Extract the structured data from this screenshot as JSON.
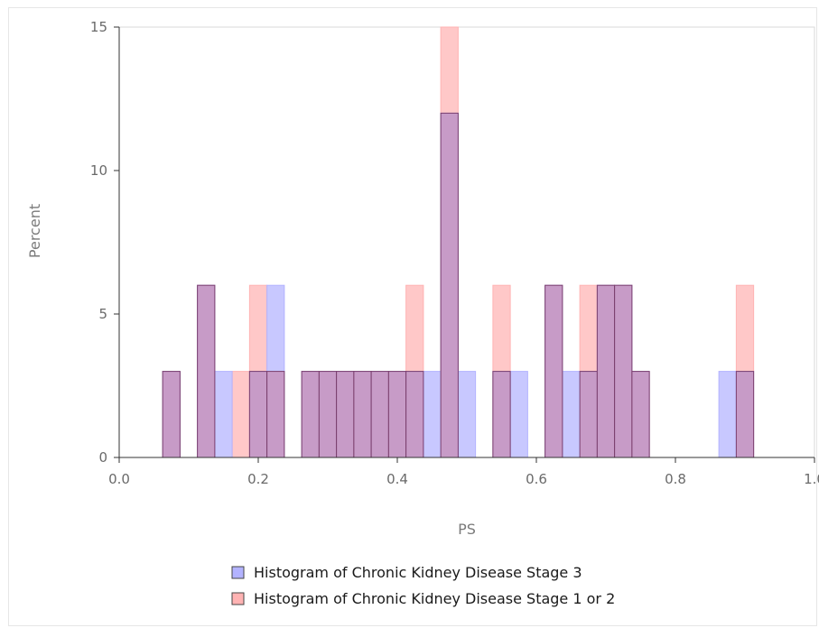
{
  "chart_data": {
    "type": "bar",
    "subtype": "overlaid-histogram",
    "xlabel": "PS",
    "ylabel": "Percent",
    "xlim": [
      0.0,
      1.0
    ],
    "ylim": [
      0,
      15
    ],
    "x_ticks": [
      "0.0",
      "0.2",
      "0.4",
      "0.6",
      "0.8",
      "1.0"
    ],
    "x_tick_values": [
      0.0,
      0.2,
      0.4,
      0.6,
      0.8,
      1.0
    ],
    "y_ticks": [
      "0",
      "5",
      "10",
      "15"
    ],
    "y_tick_values": [
      0,
      5,
      10,
      15
    ],
    "bin_width": 0.025,
    "grid": false,
    "legend_position": "bottom",
    "colors": {
      "stage3": "#b3b3ff",
      "stage12": "#ffb3b3",
      "overlap_stroke": "#7a3f6e",
      "axis": "#333333"
    },
    "series": [
      {
        "name": "Histogram of Chronic Kidney Disease Stage 3",
        "bins": [
          [
            0.075,
            3
          ],
          [
            0.125,
            6
          ],
          [
            0.15,
            3
          ],
          [
            0.2,
            3
          ],
          [
            0.225,
            6
          ],
          [
            0.275,
            3
          ],
          [
            0.3,
            3
          ],
          [
            0.325,
            3
          ],
          [
            0.35,
            3
          ],
          [
            0.375,
            3
          ],
          [
            0.4,
            3
          ],
          [
            0.425,
            3
          ],
          [
            0.45,
            3
          ],
          [
            0.475,
            12
          ],
          [
            0.5,
            3
          ],
          [
            0.55,
            3
          ],
          [
            0.575,
            3
          ],
          [
            0.625,
            6
          ],
          [
            0.65,
            3
          ],
          [
            0.675,
            3
          ],
          [
            0.7,
            6
          ],
          [
            0.725,
            6
          ],
          [
            0.75,
            3
          ],
          [
            0.875,
            3
          ],
          [
            0.9,
            3
          ]
        ]
      },
      {
        "name": "Histogram of Chronic Kidney Disease Stage 1 or 2",
        "bins": [
          [
            0.075,
            3
          ],
          [
            0.125,
            6
          ],
          [
            0.175,
            3
          ],
          [
            0.2,
            6
          ],
          [
            0.225,
            3
          ],
          [
            0.275,
            3
          ],
          [
            0.3,
            3
          ],
          [
            0.325,
            3
          ],
          [
            0.35,
            3
          ],
          [
            0.375,
            3
          ],
          [
            0.4,
            3
          ],
          [
            0.425,
            6
          ],
          [
            0.475,
            15
          ],
          [
            0.55,
            6
          ],
          [
            0.625,
            6
          ],
          [
            0.675,
            6
          ],
          [
            0.7,
            6
          ],
          [
            0.725,
            6
          ],
          [
            0.75,
            3
          ],
          [
            0.9,
            6
          ]
        ]
      }
    ]
  }
}
